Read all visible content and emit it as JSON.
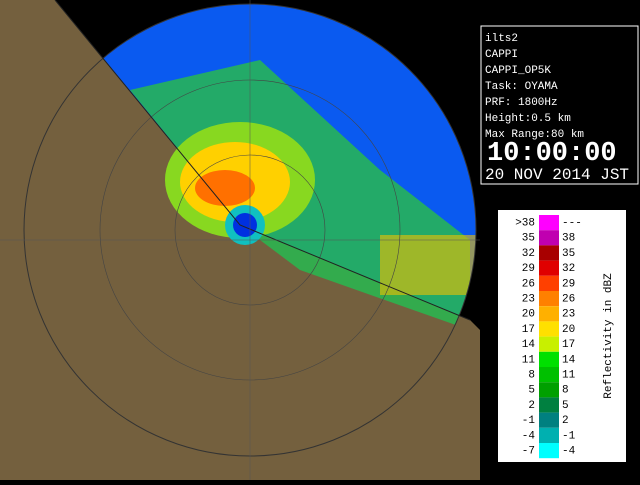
{
  "info": {
    "lines": [
      "ilts2",
      "CAPPI",
      "CAPPI_OP5K",
      "Task: OYAMA",
      "PRF: 1800Hz",
      "Height:0.5 km",
      "Max Range:80 km"
    ],
    "time": "10:00:00",
    "date": "20 NOV 2014 JST"
  },
  "legend": {
    "title": "Reflectivity in dBZ",
    "rows": [
      {
        "low": ">38",
        "high": "---",
        "color": "#ff00ff"
      },
      {
        "low": "35",
        "high": "38",
        "color": "#c000b0"
      },
      {
        "low": "32",
        "high": "35",
        "color": "#a80000"
      },
      {
        "low": "29",
        "high": "32",
        "color": "#e00000"
      },
      {
        "low": "26",
        "high": "29",
        "color": "#ff4000"
      },
      {
        "low": "23",
        "high": "26",
        "color": "#ff8000"
      },
      {
        "low": "20",
        "high": "23",
        "color": "#ffb000"
      },
      {
        "low": "17",
        "high": "20",
        "color": "#ffe000"
      },
      {
        "low": "14",
        "high": "17",
        "color": "#c8f000"
      },
      {
        "low": "11",
        "high": "14",
        "color": "#00e000"
      },
      {
        "low": "8",
        "high": "11",
        "color": "#00c000"
      },
      {
        "low": "5",
        "high": "8",
        "color": "#00a000"
      },
      {
        "low": "2",
        "high": "5",
        "color": "#008040"
      },
      {
        "low": "-1",
        "high": "2",
        "color": "#008080"
      },
      {
        "low": "-4",
        "high": "-1",
        "color": "#00b0b0"
      },
      {
        "low": "-7",
        "high": "-4",
        "color": "#00ffff"
      }
    ]
  }
}
